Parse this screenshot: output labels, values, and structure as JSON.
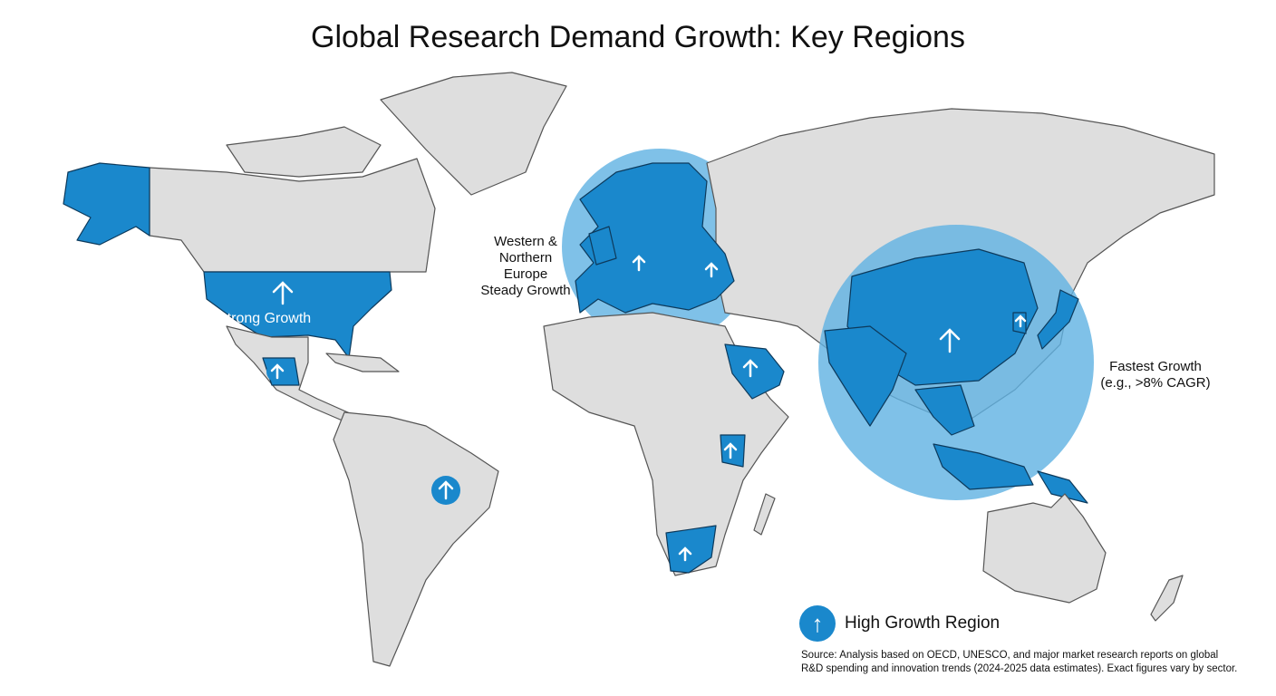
{
  "title": "Global Research Demand Growth: Key Regions",
  "labels": {
    "north_america": "Strong Growth",
    "europe_lines": [
      "Western &",
      "Northern",
      "Europe",
      "Steady Growth"
    ],
    "asia_lines": [
      "Fastest Growth",
      "(e.g., >8% CAGR)"
    ]
  },
  "legend": {
    "icon": "arrow-up-icon",
    "label": "High Growth Region"
  },
  "source_lines": [
    "Source: Analysis based on OECD, UNESCO, and major market research reports on global",
    "R&D spending and innovation trends (2024-2025 data estimates). Exact figures vary by sector."
  ],
  "colors": {
    "high_growth": "#1a88cc",
    "zone": "#5fb2e2",
    "land": "#dedede"
  },
  "high_growth_regions": [
    "Alaska",
    "United States",
    "Mexico",
    "Brazil",
    "Western & Northern Europe",
    "Ukraine",
    "Saudi Arabia",
    "Qatar",
    "Kenya",
    "South Africa",
    "China",
    "India",
    "South Korea",
    "Japan",
    "Southeast Asia",
    "Papua New Guinea"
  ]
}
